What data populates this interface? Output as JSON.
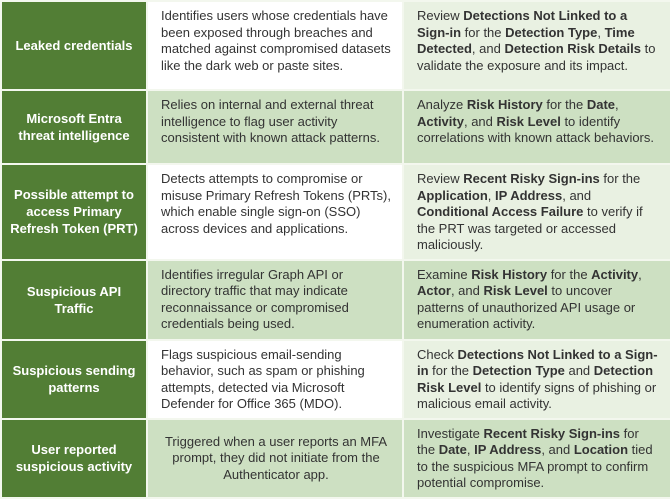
{
  "colors": {
    "header_green": "#527e35",
    "band_green": "#cde0c2",
    "band_light": "#e9f1e2",
    "cell_white": "#ffffff",
    "border_outer": "#71944b",
    "border_inner": "#f3f7ee",
    "text_dark": "#333333",
    "text_light": "#ffffff"
  },
  "table": {
    "rows": [
      {
        "risk": "Leaked credentials",
        "description": "Identifies users whose credentials have been exposed through breaches and matched against compromised datasets like the dark web or paste sites.",
        "action": "Review **Detections Not Linked to a Sign-in** for the **Detection Type**, **Time Detected**, and **Detection Risk Details** to validate the exposure and its impact."
      },
      {
        "risk": "Microsoft Entra threat intelligence",
        "description": "Relies on internal and external threat intelligence to flag user activity consistent with known attack patterns.",
        "action": "Analyze **Risk History** for the **Date**, **Activity**, and **Risk Level** to identify correlations with known attack behaviors."
      },
      {
        "risk": "Possible attempt to access Primary Refresh Token (PRT)",
        "description": "Detects attempts to compromise or misuse Primary Refresh Tokens (PRTs), which enable single sign-on (SSO) across devices and applications.",
        "action": "Review **Recent Risky Sign-ins** for the **Application**, **IP Address**, and **Conditional Access Failure** to verify if the PRT was targeted or accessed maliciously."
      },
      {
        "risk": "Suspicious API Traffic",
        "description": "Identifies irregular Graph API or directory traffic that may indicate reconnaissance or compromised credentials being used.",
        "action": "Examine **Risk History** for the **Activity**, **Actor**, and **Risk Level** to uncover patterns of unauthorized API usage or enumeration activity."
      },
      {
        "risk": "Suspicious sending patterns",
        "description": "Flags suspicious email-sending behavior, such as spam or phishing attempts, detected via Microsoft Defender for Office 365 (MDO).",
        "action": "Check **Detections Not Linked to a Sign-in** for the **Detection Type** and **Detection Risk Level** to identify signs of phishing or malicious email activity."
      },
      {
        "risk": "User reported suspicious activity",
        "description": "Triggered when a user reports an MFA prompt, they did not initiate from the Authenticator app.",
        "action": "Investigate **Recent Risky Sign-ins** for the **Date**, **IP Address**, and **Location** tied to the suspicious MFA prompt to confirm potential compromise."
      }
    ]
  }
}
